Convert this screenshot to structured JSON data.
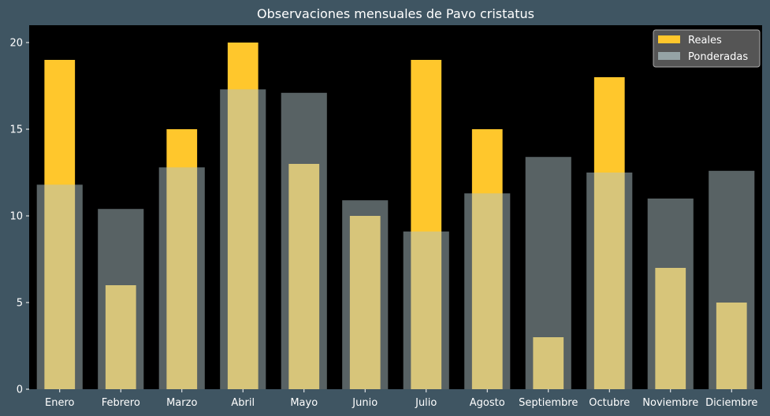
{
  "colors": {
    "figure_background": "#3f5562",
    "plot_background": "#000000",
    "reales": "#ffc72c",
    "ponderadas": "#b0c4c8",
    "legend_background": "#555555"
  },
  "chart_data": {
    "type": "bar",
    "title": "Observaciones mensuales de Pavo cristatus",
    "xlabel": "",
    "ylabel": "",
    "categories": [
      "Enero",
      "Febrero",
      "Marzo",
      "Abril",
      "Mayo",
      "Junio",
      "Julio",
      "Agosto",
      "Septiembre",
      "Octubre",
      "Noviembre",
      "Diciembre"
    ],
    "series": [
      {
        "name": "Reales",
        "values": [
          19,
          6,
          15,
          20,
          13,
          10,
          19,
          15,
          3,
          18,
          7,
          5
        ]
      },
      {
        "name": "Ponderadas",
        "values": [
          11.8,
          10.4,
          12.8,
          17.3,
          17.1,
          10.9,
          9.1,
          11.3,
          13.4,
          12.5,
          11.0,
          12.6
        ]
      }
    ],
    "ylim": [
      0,
      21
    ],
    "yticks": [
      0,
      5,
      10,
      15,
      20
    ],
    "grid": false,
    "legend_position": "top-right"
  }
}
